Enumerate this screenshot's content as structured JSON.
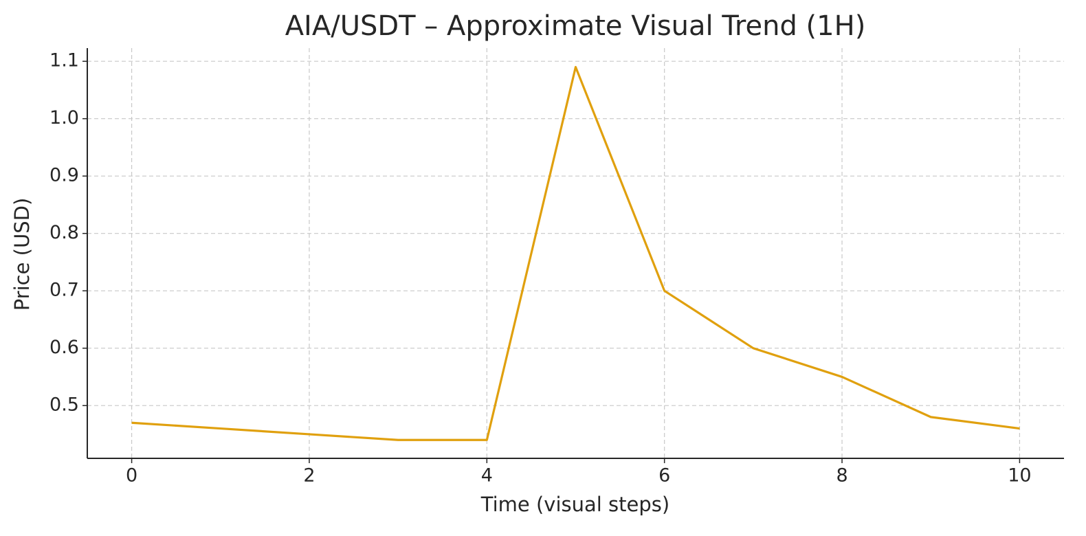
{
  "chart_data": {
    "type": "line",
    "title": "AIA/USDT – Approximate Visual Trend (1H)",
    "x_label": "Time (visual steps)",
    "y_label": "Price (USD)",
    "x": [
      0,
      1,
      2,
      3,
      4,
      5,
      6,
      7,
      8,
      9,
      10
    ],
    "series": [
      {
        "name": "AIA/USDT",
        "color": "#e0a00e",
        "values": [
          0.47,
          0.46,
          0.45,
          0.44,
          0.44,
          1.09,
          0.7,
          0.6,
          0.55,
          0.48,
          0.46
        ]
      }
    ],
    "xlim": [
      -0.5,
      10.5
    ],
    "xticks": [
      0,
      2,
      4,
      6,
      8,
      10
    ],
    "ylim": [
      0.408,
      1.123
    ],
    "yticks": [
      0.5,
      0.6,
      0.7,
      0.8,
      0.9,
      {
        "value": 1,
        "label": "1.0"
      },
      1.1
    ],
    "grid": true,
    "legend": false
  }
}
